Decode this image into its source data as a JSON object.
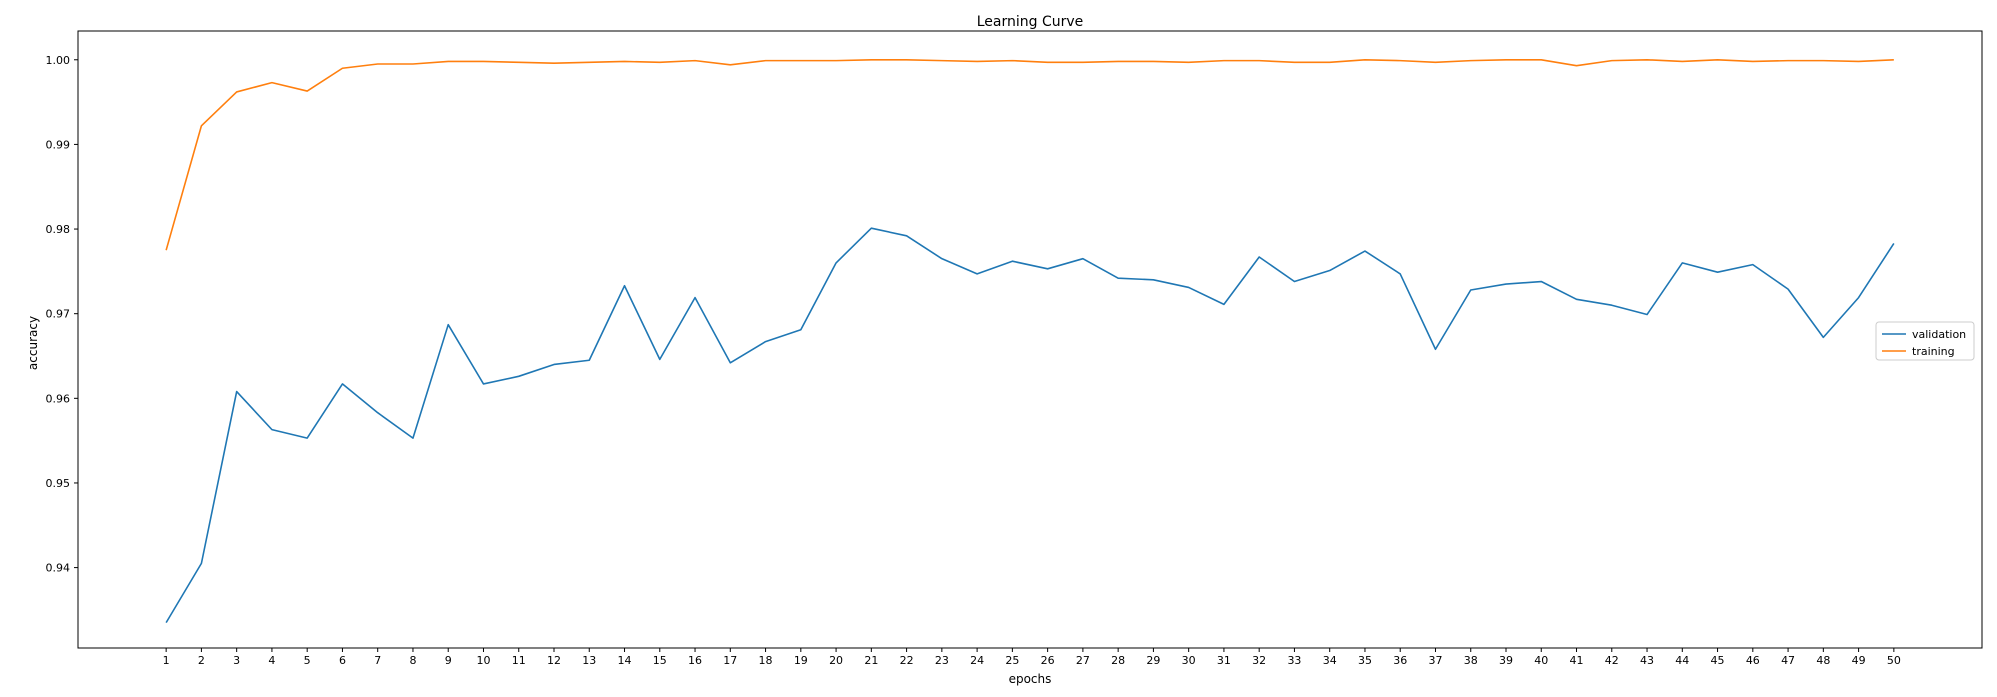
{
  "chart_data": {
    "type": "line",
    "title": "Learning Curve",
    "xlabel": "epochs",
    "ylabel": "accuracy",
    "x": [
      1,
      2,
      3,
      4,
      5,
      6,
      7,
      8,
      9,
      10,
      11,
      12,
      13,
      14,
      15,
      16,
      17,
      18,
      19,
      20,
      21,
      22,
      23,
      24,
      25,
      26,
      27,
      28,
      29,
      30,
      31,
      32,
      33,
      34,
      35,
      36,
      37,
      38,
      39,
      40,
      41,
      42,
      43,
      44,
      45,
      46,
      47,
      48,
      49,
      50
    ],
    "xlim": [
      -1.5,
      52.5
    ],
    "ylim": [
      0.9305,
      1.0034
    ],
    "yticks": [
      0.94,
      0.95,
      0.96,
      0.97,
      0.98,
      0.99,
      1.0
    ],
    "ytick_labels": [
      "0.94",
      "0.95",
      "0.96",
      "0.97",
      "0.98",
      "0.99",
      "1.00"
    ],
    "grid": false,
    "legend_position": "center-right",
    "series": [
      {
        "name": "validation",
        "color": "#1f77b4",
        "values": [
          0.9335,
          0.9405,
          0.9608,
          0.9563,
          0.9553,
          0.9617,
          0.9583,
          0.9553,
          0.9687,
          0.9617,
          0.9626,
          0.964,
          0.9645,
          0.9733,
          0.9646,
          0.9719,
          0.9642,
          0.9667,
          0.9681,
          0.976,
          0.9801,
          0.9792,
          0.9765,
          0.9747,
          0.9762,
          0.9753,
          0.9765,
          0.9742,
          0.974,
          0.9731,
          0.9711,
          0.9767,
          0.9738,
          0.9751,
          0.9774,
          0.9747,
          0.9658,
          0.9728,
          0.9735,
          0.9738,
          0.9717,
          0.971,
          0.9699,
          0.976,
          0.9749,
          0.9758,
          0.9729,
          0.9672,
          0.9719,
          0.9783
        ]
      },
      {
        "name": "training",
        "color": "#ff7f0e",
        "values": [
          0.9775,
          0.9922,
          0.9962,
          0.9973,
          0.9963,
          0.999,
          0.9995,
          0.9995,
          0.9998,
          0.9998,
          0.9997,
          0.9996,
          0.9997,
          0.9998,
          0.9997,
          0.9999,
          0.9994,
          0.9999,
          0.9999,
          0.9999,
          1.0,
          1.0,
          0.9999,
          0.9998,
          0.9999,
          0.9997,
          0.9997,
          0.9998,
          0.9998,
          0.9997,
          0.9999,
          0.9999,
          0.9997,
          0.9997,
          1.0,
          0.9999,
          0.9997,
          0.9999,
          1.0,
          1.0,
          0.9993,
          0.9999,
          1.0,
          0.9998,
          1.0,
          0.9998,
          0.9999,
          0.9999,
          0.9998,
          1.0
        ]
      }
    ]
  }
}
